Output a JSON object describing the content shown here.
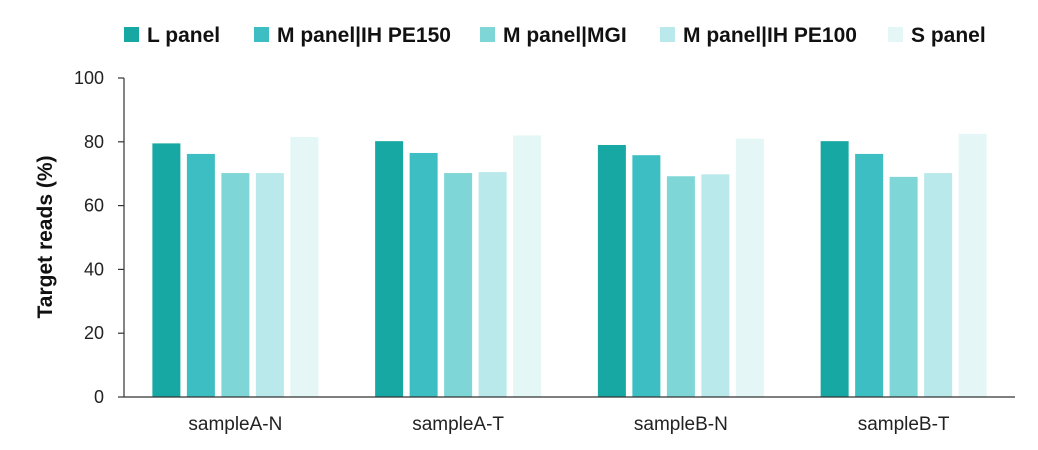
{
  "chart_data": {
    "type": "bar",
    "categories": [
      "sampleA-N",
      "sampleA-T",
      "sampleB-N",
      "sampleB-T"
    ],
    "series": [
      {
        "name": "L panel",
        "color": "#17a8a3",
        "values": [
          79.5,
          80.2,
          79.0,
          80.2
        ]
      },
      {
        "name": "M panel|IH PE150",
        "color": "#3dbec2",
        "values": [
          76.2,
          76.5,
          75.8,
          76.2
        ]
      },
      {
        "name": "M panel|MGI",
        "color": "#7ed6d6",
        "values": [
          70.2,
          70.2,
          69.2,
          69.0
        ]
      },
      {
        "name": "M panel|IH PE100",
        "color": "#b9e9ea",
        "values": [
          70.2,
          70.5,
          69.8,
          70.2
        ]
      },
      {
        "name": "S panel",
        "color": "#e4f6f6",
        "values": [
          81.5,
          82.0,
          81.0,
          82.5
        ]
      }
    ],
    "ylabel": "Target reads (%)",
    "xlabel": "",
    "ylim": [
      0,
      100
    ],
    "yticks": [
      0,
      20,
      40,
      60,
      80,
      100
    ],
    "legend_position": "top",
    "grid": false
  }
}
